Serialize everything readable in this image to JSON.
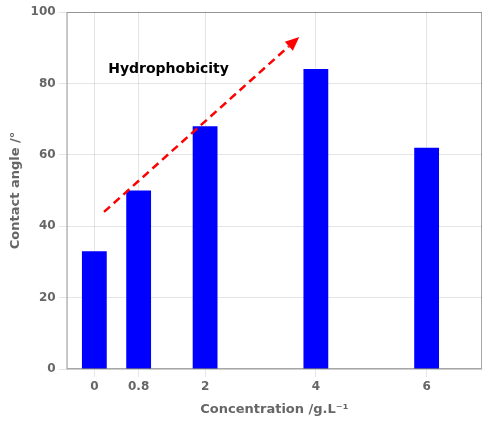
{
  "chart_data": {
    "type": "bar",
    "x": [
      0,
      0.8,
      2,
      4,
      6
    ],
    "values": [
      33,
      50,
      68,
      84,
      62
    ],
    "color": "#0000FF",
    "xlabel": "Concentration /g.L⁻¹",
    "ylabel": "Contact angle /°",
    "xlim": [
      -0.5,
      7.0
    ],
    "xticks": [
      0,
      0.8,
      2,
      4,
      6
    ],
    "ylim": [
      0,
      100
    ],
    "yticks": [
      0,
      20,
      40,
      60,
      80,
      100
    ],
    "annotations": [
      "Hydrophobicity"
    ],
    "grid": true
  }
}
